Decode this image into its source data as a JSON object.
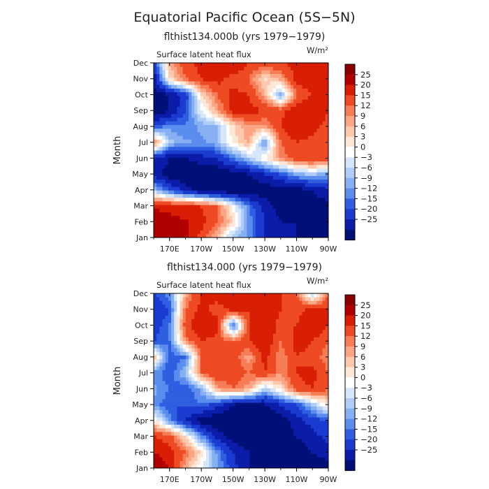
{
  "figure": {
    "title": "Equatorial Pacific Ocean (5S−5N)"
  },
  "colorbar": {
    "labels": [
      "25",
      "20",
      "15",
      "12",
      "9",
      "6",
      "3",
      "0",
      "−3",
      "−6",
      "−9",
      "−12",
      "−15",
      "−20",
      "−25"
    ],
    "colors": [
      "#8b0000",
      "#b00000",
      "#d81e05",
      "#ee4a23",
      "#f77d57",
      "#fba584",
      "#fdc8ac",
      "#fde8d8",
      "#ffffff",
      "#d6e6fb",
      "#b0cdf7",
      "#86b0f1",
      "#5b8def",
      "#2f5fe0",
      "#1a3ad0",
      "#0a1ca8",
      "#000f78"
    ]
  },
  "chart_data": [
    {
      "type": "heatmap",
      "subtitle": "flthist134.000b (yrs 1979−1979)",
      "field_label": "Surface latent heat flux",
      "units": "W/m²",
      "xlabel": "",
      "ylabel": "Month",
      "x_ticks": [
        "170E",
        "170W",
        "150W",
        "130W",
        "110W",
        "90W"
      ],
      "x_range": [
        "160E",
        "90W"
      ],
      "y_ticks": [
        "Jan",
        "Feb",
        "Mar",
        "Apr",
        "May",
        "Jun",
        "Jul",
        "Aug",
        "Sep",
        "Oct",
        "Nov",
        "Dec"
      ],
      "contour_levels": [
        -25,
        -20,
        -15,
        -12,
        -9,
        -6,
        -3,
        0,
        3,
        6,
        9,
        12,
        15,
        20,
        25
      ],
      "x_lon_east": [
        160,
        170,
        180,
        190,
        200,
        210,
        220,
        230,
        240,
        250,
        260,
        270
      ],
      "months": [
        "Jan",
        "Feb",
        "Mar",
        "Apr",
        "May",
        "Jun",
        "Jul",
        "Aug",
        "Sep",
        "Oct",
        "Nov",
        "Dec"
      ],
      "values": [
        [
          30,
          28,
          26,
          18,
          8,
          -6,
          -10,
          -20,
          -25,
          -25,
          -28,
          -28
        ],
        [
          30,
          28,
          26,
          22,
          16,
          6,
          -10,
          -20,
          -25,
          -25,
          -28,
          -28
        ],
        [
          24,
          22,
          20,
          20,
          15,
          2,
          -12,
          -22,
          -28,
          -28,
          -28,
          -28
        ],
        [
          -6,
          -15,
          -22,
          -28,
          -30,
          -30,
          -30,
          -28,
          -28,
          -28,
          -25,
          -20
        ],
        [
          -22,
          -28,
          -30,
          -30,
          -30,
          -28,
          -25,
          -20,
          -15,
          -8,
          -5,
          -10
        ],
        [
          -20,
          -25,
          -25,
          -22,
          -20,
          -12,
          -5,
          3,
          12,
          18,
          20,
          18
        ],
        [
          15,
          -5,
          -8,
          -10,
          -6,
          4,
          10,
          -10,
          15,
          20,
          18,
          15
        ],
        [
          -15,
          -10,
          -12,
          -8,
          -6,
          5,
          12,
          10,
          20,
          25,
          22,
          18
        ],
        [
          -30,
          -25,
          -15,
          0,
          10,
          22,
          22,
          20,
          18,
          25,
          25,
          20
        ],
        [
          -28,
          -25,
          -18,
          5,
          15,
          22,
          20,
          10,
          -8,
          15,
          20,
          22
        ],
        [
          -25,
          5,
          15,
          20,
          22,
          18,
          15,
          5,
          10,
          22,
          25,
          20
        ],
        [
          -18,
          10,
          18,
          22,
          20,
          25,
          20,
          18,
          20,
          22,
          25,
          22
        ]
      ]
    },
    {
      "type": "heatmap",
      "subtitle": "flthist134.000 (yrs 1979−1979)",
      "field_label": "Surface latent heat flux",
      "units": "W/m²",
      "xlabel": "",
      "ylabel": "Month",
      "x_ticks": [
        "170E",
        "170W",
        "150W",
        "130W",
        "110W",
        "90W"
      ],
      "x_range": [
        "160E",
        "90W"
      ],
      "y_ticks": [
        "Jan",
        "Feb",
        "Mar",
        "Apr",
        "May",
        "Jun",
        "Jul",
        "Aug",
        "Sep",
        "Oct",
        "Nov",
        "Dec"
      ],
      "contour_levels": [
        -25,
        -20,
        -15,
        -12,
        -9,
        -6,
        -3,
        0,
        3,
        6,
        9,
        12,
        15,
        20,
        25
      ],
      "x_lon_east": [
        160,
        170,
        180,
        190,
        200,
        210,
        220,
        230,
        240,
        250,
        260,
        270
      ],
      "months": [
        "Jan",
        "Feb",
        "Mar",
        "Apr",
        "May",
        "Jun",
        "Jul",
        "Aug",
        "Sep",
        "Oct",
        "Nov",
        "Dec"
      ],
      "values": [
        [
          30,
          25,
          10,
          0,
          -8,
          -18,
          -25,
          -25,
          -28,
          -28,
          -28,
          -28
        ],
        [
          25,
          22,
          15,
          5,
          -10,
          -20,
          -25,
          -28,
          -28,
          -28,
          -25,
          -22
        ],
        [
          20,
          18,
          5,
          -10,
          -22,
          -28,
          -30,
          -28,
          -28,
          -25,
          -22,
          -18
        ],
        [
          5,
          -10,
          -20,
          -28,
          -30,
          -30,
          -30,
          -30,
          -28,
          -22,
          -18,
          -15
        ],
        [
          -10,
          -15,
          -15,
          -12,
          -18,
          -25,
          -28,
          -25,
          -20,
          -15,
          -5,
          5
        ],
        [
          -8,
          -12,
          -15,
          -8,
          10,
          15,
          10,
          -5,
          5,
          18,
          20,
          15
        ],
        [
          -10,
          -15,
          -5,
          15,
          20,
          18,
          15,
          20,
          12,
          20,
          22,
          15
        ],
        [
          10,
          -15,
          -12,
          15,
          20,
          18,
          10,
          22,
          12,
          20,
          18,
          12
        ],
        [
          -15,
          -12,
          12,
          20,
          18,
          15,
          20,
          25,
          15,
          22,
          20,
          15
        ],
        [
          -18,
          -12,
          18,
          25,
          22,
          -15,
          20,
          25,
          18,
          20,
          25,
          20
        ],
        [
          -20,
          -15,
          15,
          22,
          18,
          22,
          20,
          25,
          20,
          18,
          22,
          20
        ],
        [
          -15,
          -10,
          10,
          20,
          22,
          25,
          22,
          25,
          20,
          15,
          -5,
          15
        ]
      ]
    }
  ]
}
